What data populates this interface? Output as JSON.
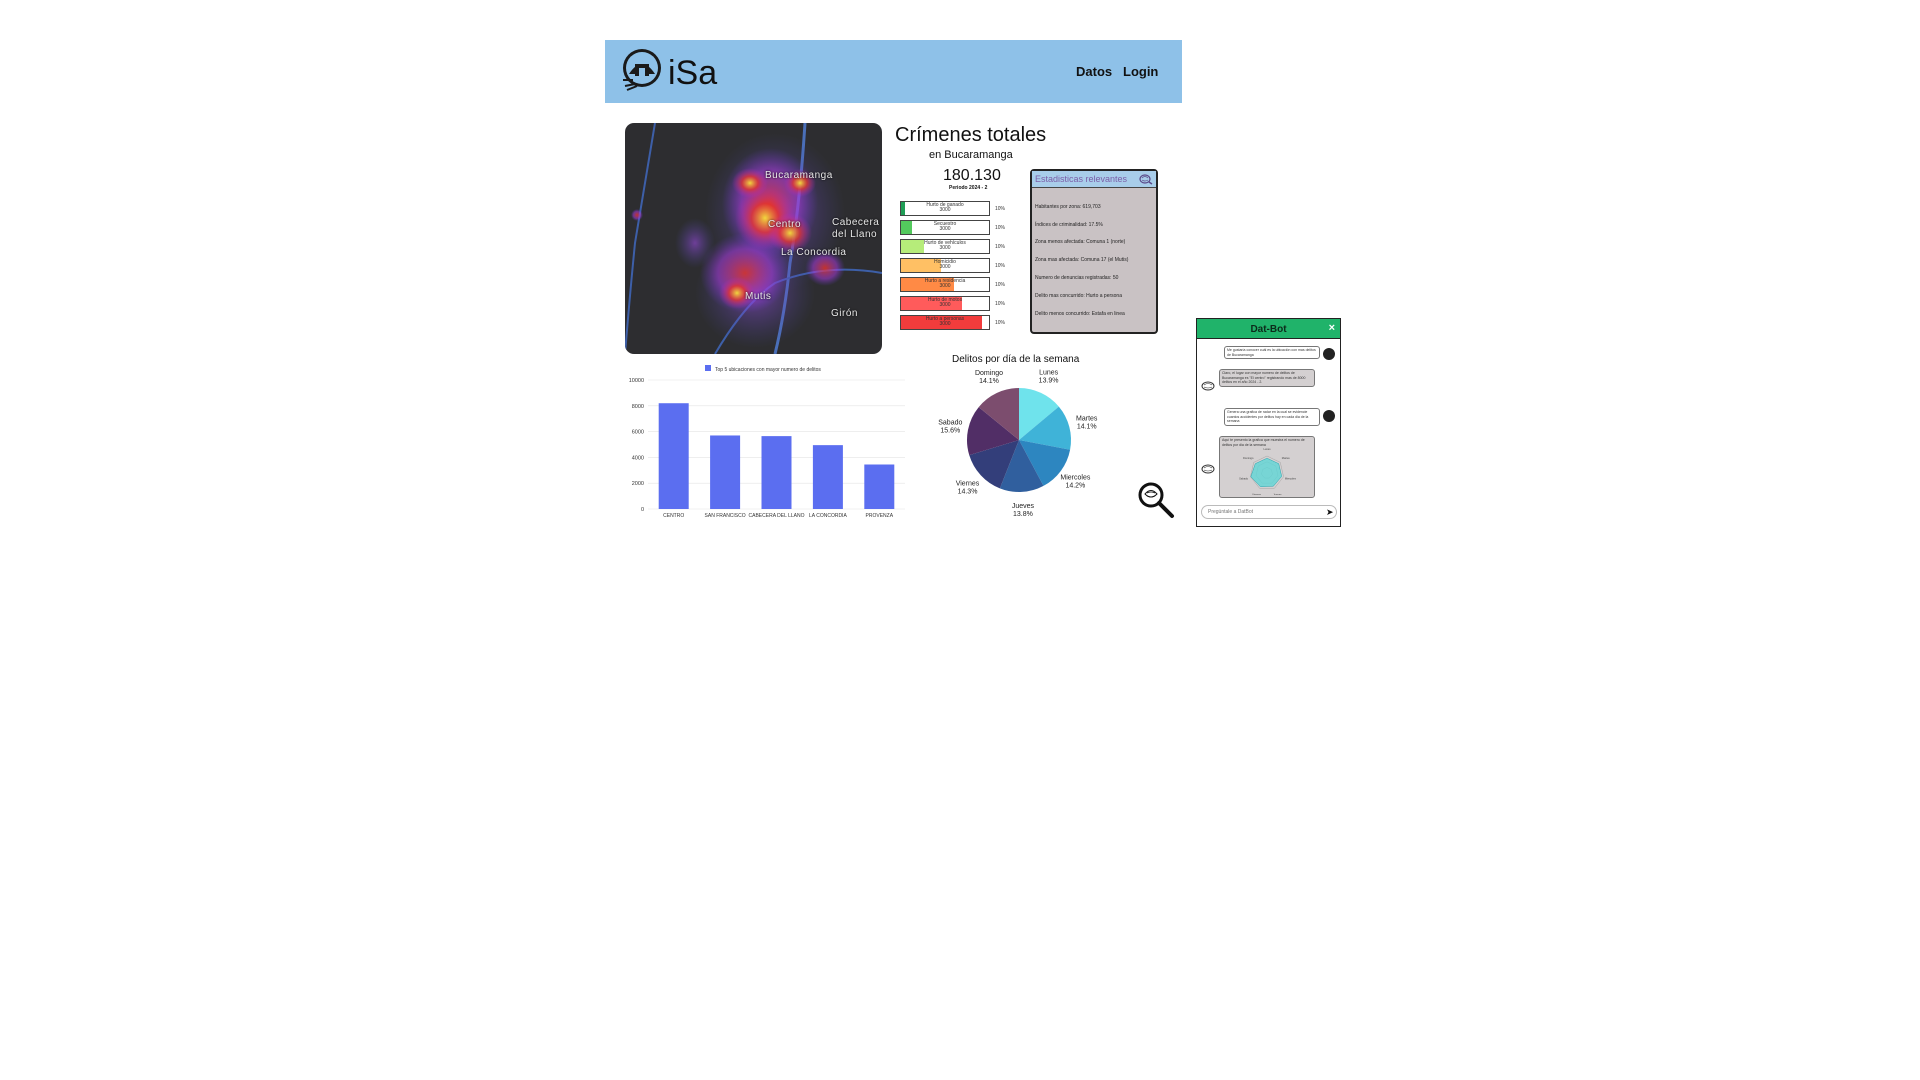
{
  "header": {
    "brand": "iSa",
    "nav": [
      "Datos",
      "Login"
    ],
    "bg_color": "#8ec1e8"
  },
  "map": {
    "labels": [
      "Bucaramanga",
      "Centro",
      "Cabecera",
      "del Llano",
      "La Concordia",
      "Mutis",
      "Girón"
    ]
  },
  "summary": {
    "title": "Crímenes totales",
    "subtitle": "en Bucaramanga",
    "total": "180.130",
    "period": "Periodo 2024 - 2"
  },
  "crime_types": [
    {
      "label": "Hurto de ganado",
      "count": "3000",
      "pct": "10%",
      "fill_fraction": 0.04,
      "color": "#1f9d55"
    },
    {
      "label": "Secuestro",
      "count": "3000",
      "pct": "10%",
      "fill_fraction": 0.12,
      "color": "#53c95d"
    },
    {
      "label": "Hurto de vehículos",
      "count": "3000",
      "pct": "10%",
      "fill_fraction": 0.26,
      "color": "#b6ec7a"
    },
    {
      "label": "Homicidio",
      "count": "3000",
      "pct": "10%",
      "fill_fraction": 0.45,
      "color": "#ffc064"
    },
    {
      "label": "Hurto a residencia",
      "count": "3000",
      "pct": "10%",
      "fill_fraction": 0.6,
      "color": "#ff8a45"
    },
    {
      "label": "Hurto de motos",
      "count": "3000",
      "pct": "10%",
      "fill_fraction": 0.69,
      "color": "#ff5b5b"
    },
    {
      "label": "Hurto a personas",
      "count": "3000",
      "pct": "10%",
      "fill_fraction": 0.92,
      "color": "#f23c3c"
    }
  ],
  "stats": {
    "title": "Estadisticas relevantes",
    "lines": [
      "Habitantes por zona: 619,703",
      "Índices de criminalidad: 17.5%",
      "Zona menos afectada: Comuna 1 (norte)",
      "Zona mas afectada: Comuna 17 (el Mutis)",
      "Numero de denuncias registradas: 50",
      "Delito mas concurrido: Hurto a persona",
      "Delito menos concurrido: Estafa en linea"
    ]
  },
  "bar_chart_data": {
    "type": "bar",
    "legend": "Top 5 ubicaciones con mayor numero de delitos",
    "categories": [
      "CENTRO",
      "SAN FRANCISCO",
      "CABECERA DEL LLANO",
      "LA CONCORDIA",
      "PROVENZA"
    ],
    "values": [
      8200,
      5700,
      5650,
      4950,
      3450
    ],
    "yticks": [
      0,
      2000,
      4000,
      6000,
      8000,
      10000
    ],
    "ylim": [
      0,
      10000
    ],
    "color": "#5b6ef0"
  },
  "pie_chart_data": {
    "type": "pie",
    "title": "Delitos por día de la semana",
    "slices": [
      {
        "label": "Lunes",
        "pct_text": "13.9%",
        "value": 13.9,
        "color": "#6fe3ec"
      },
      {
        "label": "Martes",
        "pct_text": "14.1%",
        "value": 14.1,
        "color": "#3fb3d8"
      },
      {
        "label": "Miercoles",
        "pct_text": "14.2%",
        "value": 14.2,
        "color": "#2d86c0"
      },
      {
        "label": "Jueves",
        "pct_text": "13.8%",
        "value": 13.8,
        "color": "#305f9e"
      },
      {
        "label": "Viernes",
        "pct_text": "14.3%",
        "value": 14.3,
        "color": "#333e7a"
      },
      {
        "label": "Sabado",
        "pct_text": "15.6%",
        "value": 15.6,
        "color": "#512e66"
      },
      {
        "label": "Domingo",
        "pct_text": "14.1%",
        "value": 14.1,
        "color": "#7c4d6e"
      }
    ]
  },
  "chatbot": {
    "title": "Dat-Bot",
    "close": "×",
    "messages": [
      {
        "from": "user",
        "text": "Me gustaría conocer cuál es la ubicación con mas delitos de Bucaramanga"
      },
      {
        "from": "bot",
        "text": "Claro, el lugar con mayor numero de delitos de Bucaramanga es \"El centro\" registrando mas de 8000 delitos en el año 2024 - 2."
      },
      {
        "from": "user",
        "text": "Genera una grafica de radar en la cual se evidencie cuantos accidentes por delitos hay en cada dia de la semana"
      },
      {
        "from": "bot",
        "text": "Aquí te presento la grafica que muestra el numero de delitos por dia de la semana"
      }
    ],
    "radar_labels": [
      "Lunes",
      "Martes",
      "Miercoles",
      "Jueves",
      "Viernes",
      "Sabado",
      "Domingo"
    ],
    "input_placeholder": "Pregúntale a DatBot",
    "send_icon": "send-icon"
  }
}
